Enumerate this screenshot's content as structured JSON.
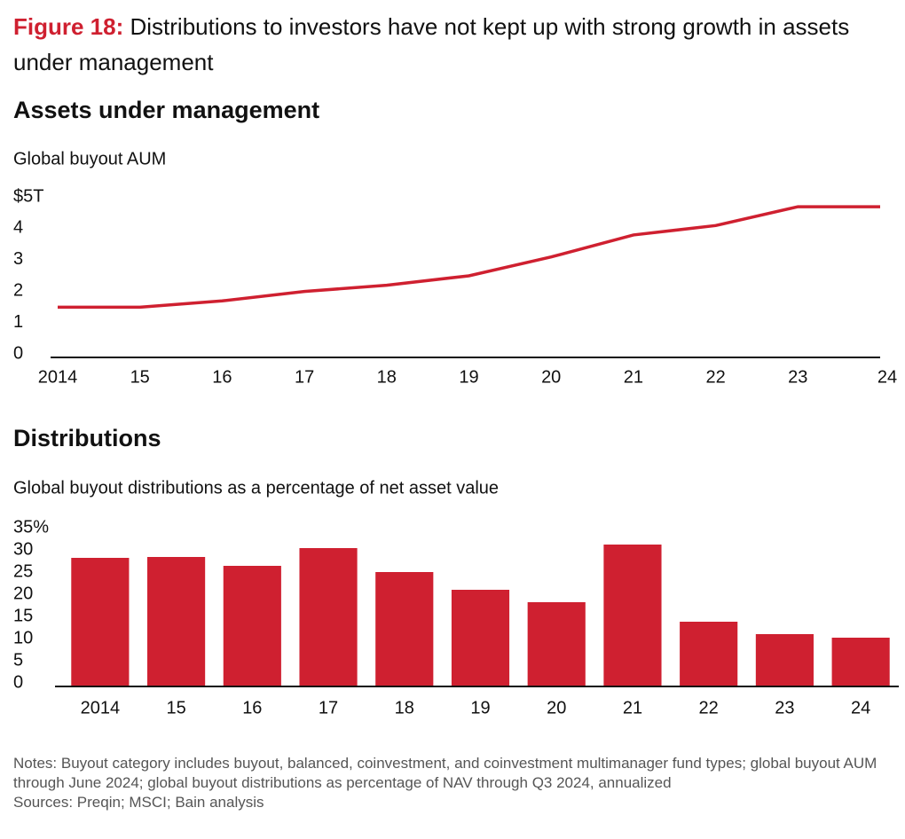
{
  "figure": {
    "label": "Figure 18:",
    "title": "Distributions to investors have not kept up with strong growth in assets under management"
  },
  "chart_data": [
    {
      "type": "line",
      "title": "Assets under management",
      "subtitle": "Global buyout AUM",
      "categories": [
        "2014",
        "15",
        "16",
        "17",
        "18",
        "19",
        "20",
        "21",
        "22",
        "23",
        "24"
      ],
      "values": [
        1.6,
        1.6,
        1.8,
        2.1,
        2.3,
        2.6,
        3.2,
        3.9,
        4.2,
        4.8,
        4.8
      ],
      "color": "#cf2030",
      "ylim": [
        0,
        5
      ],
      "yticks": [
        0,
        1,
        2,
        3,
        4,
        {
          "value": 5,
          "label": "$5T"
        }
      ],
      "grid": false
    },
    {
      "type": "bar",
      "title": "Distributions",
      "subtitle": "Global buyout distributions as a percentage of net asset value",
      "categories": [
        "2014",
        "15",
        "16",
        "17",
        "18",
        "19",
        "20",
        "21",
        "22",
        "23",
        "24"
      ],
      "values": [
        29,
        29.2,
        27.2,
        31.2,
        25.8,
        21.8,
        19,
        32,
        14.6,
        11.8,
        11
      ],
      "color": "#cf2030",
      "ylim": [
        0,
        35
      ],
      "yticks": [
        0,
        5,
        10,
        15,
        20,
        25,
        30,
        {
          "value": 35,
          "label": "35%"
        }
      ],
      "grid": false
    }
  ],
  "notes": "Notes: Buyout category includes buyout, balanced, coinvestment, and coinvestment multimanager fund types; global buyout AUM through June 2024; global buyout distributions as percentage of NAV through Q3 2024, annualized",
  "sources": "Sources: Preqin; MSCI; Bain analysis"
}
